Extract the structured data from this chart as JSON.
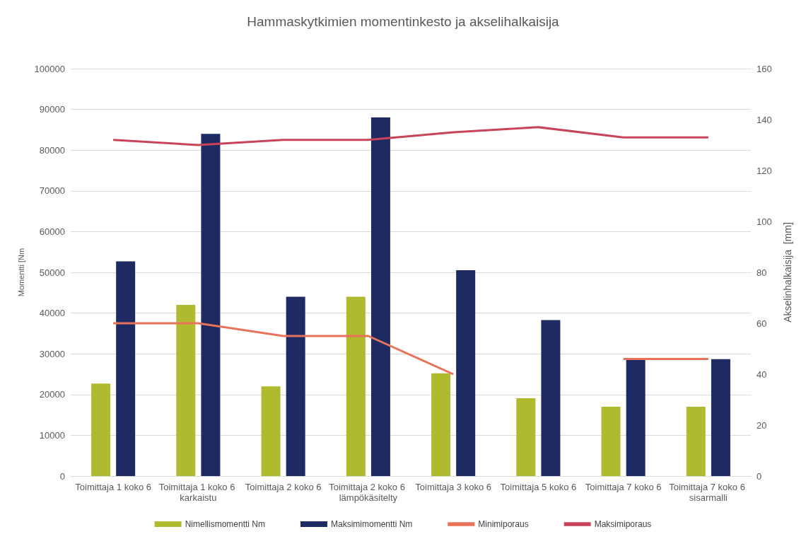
{
  "chart_data": {
    "type": "bar",
    "title": "Hammaskytkimien momentinkesto ja akselihalkaisija",
    "ylabel": "Momentti [Nm",
    "y2label": "Akselinhalkaisija  [mm]",
    "categories": [
      "Toimittaja 1 koko 6",
      "Toimittaja 1 koko 6 karkaistu",
      "Toimittaja 2 koko 6",
      "Toimittaja 2 koko 6 lämpökäsitelty",
      "Toimittaja 3 koko 6",
      "Toimittaja 5 koko 6",
      "Toimittaja 7 koko 6",
      "Toimittaja 7 koko 6 sisarmalli"
    ],
    "series": [
      {
        "name": "Nimellismomentti Nm",
        "color": "#afba2e",
        "values": [
          22700,
          42000,
          22000,
          44000,
          25200,
          19100,
          17000,
          17000
        ]
      },
      {
        "name": "Maksimimomentti Nm",
        "color": "#1e2a62",
        "values": [
          52700,
          84000,
          44000,
          88000,
          50500,
          38300,
          28700,
          28700
        ]
      },
      {
        "name": "Minimiporaus",
        "type": "line",
        "axis": "y2",
        "color": "#e8735a",
        "values": [
          60,
          60,
          55,
          55,
          40,
          null,
          46,
          46
        ]
      },
      {
        "name": "Maksimiporaus",
        "type": "line",
        "axis": "y2",
        "color": "#c9435a",
        "values": [
          132,
          130,
          132,
          132,
          135,
          137,
          133,
          133
        ]
      }
    ],
    "ylim": [
      0,
      100000
    ],
    "yticks": [
      0,
      10000,
      20000,
      30000,
      40000,
      50000,
      60000,
      70000,
      80000,
      90000,
      100000
    ],
    "y2lim": [
      0,
      160
    ],
    "y2ticks": [
      0,
      20,
      40,
      60,
      80,
      100,
      120,
      140,
      160
    ],
    "grid": "y",
    "legend": "bottom",
    "marker": "none"
  }
}
